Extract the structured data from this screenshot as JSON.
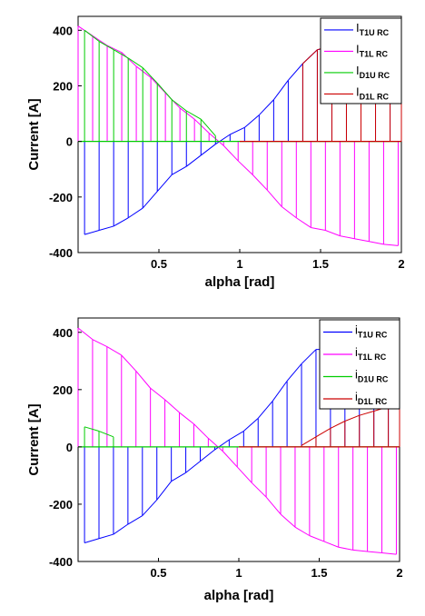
{
  "chart_data": [
    {
      "type": "line",
      "xlabel": "alpha [rad]",
      "ylabel": "Current [A]",
      "xlim": [
        0,
        2
      ],
      "ylim": [
        -400,
        450
      ],
      "xticks": [
        0.5,
        1,
        1.5,
        2
      ],
      "yticks": [
        -400,
        -200,
        0,
        200,
        400
      ],
      "xtick_labels": [
        "0.5",
        "1",
        "1.5",
        "2"
      ],
      "ytick_labels": [
        "-400",
        "-200",
        "0",
        "200",
        "400"
      ],
      "grid": false,
      "legend_position": "top-right",
      "legend": [
        {
          "main": "I",
          "sub": "T1U RC",
          "color": "#0000ff"
        },
        {
          "main": "I",
          "sub": "T1L RC",
          "color": "#ff00ff"
        },
        {
          "main": "I",
          "sub": "D1U RC",
          "color": "#00cc00"
        },
        {
          "main": "I",
          "sub": "D1L RC",
          "color": "#cc0000"
        }
      ],
      "series": [
        {
          "name": "I_T1U RC",
          "color": "#0000ff",
          "x": [
            0.04,
            0.13,
            0.22,
            0.31,
            0.4,
            0.49,
            0.58,
            0.67,
            0.76,
            0.85,
            0.94,
            1.03,
            1.12,
            1.21,
            1.3,
            1.39,
            1.48,
            1.57,
            1.66,
            1.75,
            1.84,
            1.93
          ],
          "y": [
            -335,
            -320,
            -305,
            -275,
            -240,
            -180,
            -120,
            -90,
            -50,
            -10,
            25,
            50,
            95,
            150,
            220,
            280,
            330,
            340,
            300,
            230,
            175,
            140
          ]
        },
        {
          "name": "I_T1L RC",
          "color": "#ff00ff",
          "x": [
            0.0,
            0.09,
            0.18,
            0.27,
            0.36,
            0.45,
            0.54,
            0.63,
            0.72,
            0.81,
            0.9,
            0.99,
            1.08,
            1.17,
            1.26,
            1.35,
            1.44,
            1.53,
            1.62,
            1.71,
            1.8,
            1.89,
            1.98
          ],
          "y": [
            415,
            380,
            345,
            320,
            270,
            230,
            175,
            120,
            80,
            30,
            -15,
            -70,
            -120,
            -175,
            -235,
            -275,
            -310,
            -320,
            -340,
            -350,
            -360,
            -370,
            -375
          ]
        },
        {
          "name": "I_D1U RC",
          "color": "#00cc00",
          "x": [
            0.04,
            0.13,
            0.22,
            0.31,
            0.4,
            0.49,
            0.58,
            0.67,
            0.76,
            0.85
          ],
          "y": [
            400,
            360,
            330,
            300,
            265,
            210,
            150,
            110,
            80,
            20
          ]
        },
        {
          "name": "I_D1L RC",
          "color": "#cc0000",
          "x": [
            1.39,
            1.48,
            1.57,
            1.66,
            1.75,
            1.84,
            1.93,
            2.0
          ],
          "y": [
            280,
            330,
            345,
            330,
            250,
            200,
            180,
            170
          ]
        }
      ]
    },
    {
      "type": "line",
      "xlabel": "alpha [rad]",
      "ylabel": "Current [A]",
      "xlim": [
        0,
        2
      ],
      "ylim": [
        -400,
        450
      ],
      "xticks": [
        0.5,
        1,
        1.5,
        2
      ],
      "yticks": [
        -400,
        -200,
        0,
        200,
        400
      ],
      "xtick_labels": [
        "0.5",
        "1",
        "1.5",
        "2"
      ],
      "ytick_labels": [
        "-400",
        "-200",
        "0",
        "200",
        "400"
      ],
      "grid": false,
      "legend_position": "top-right",
      "legend": [
        {
          "main": "i",
          "sub": "T1U RC",
          "color": "#0000ff"
        },
        {
          "main": "i",
          "sub": "T1L RC",
          "color": "#ff00ff"
        },
        {
          "main": "i",
          "sub": "D1U RC",
          "color": "#00cc00"
        },
        {
          "main": "i",
          "sub": "D1L RC",
          "color": "#cc0000"
        }
      ],
      "series": [
        {
          "name": "i_T1U RC",
          "color": "#0000ff",
          "x": [
            0.04,
            0.13,
            0.22,
            0.31,
            0.4,
            0.49,
            0.58,
            0.67,
            0.76,
            0.85,
            0.94,
            1.03,
            1.12,
            1.21,
            1.3,
            1.39,
            1.48,
            1.57,
            1.66,
            1.75,
            1.84,
            1.93
          ],
          "y": [
            -335,
            -320,
            -305,
            -270,
            -240,
            -185,
            -120,
            -90,
            -50,
            -10,
            25,
            55,
            100,
            160,
            230,
            290,
            340,
            340,
            300,
            235,
            180,
            140
          ]
        },
        {
          "name": "i_T1L RC",
          "color": "#ff00ff",
          "x": [
            0.0,
            0.09,
            0.18,
            0.27,
            0.36,
            0.45,
            0.54,
            0.63,
            0.72,
            0.81,
            0.9,
            0.99,
            1.08,
            1.17,
            1.26,
            1.35,
            1.44,
            1.53,
            1.62,
            1.71,
            1.8,
            1.89,
            1.98
          ],
          "y": [
            415,
            375,
            350,
            320,
            265,
            205,
            165,
            120,
            80,
            30,
            -15,
            -70,
            -125,
            -175,
            -235,
            -280,
            -310,
            -330,
            -350,
            -360,
            -365,
            -370,
            -375
          ]
        },
        {
          "name": "i_D1U RC",
          "color": "#00cc00",
          "x": [
            0.04,
            0.13,
            0.22
          ],
          "y": [
            70,
            55,
            35
          ]
        },
        {
          "name": "i_D1L RC",
          "color": "#cc0000",
          "x": [
            1.39,
            1.48,
            1.57,
            1.66,
            1.75,
            1.84,
            1.93,
            2.0
          ],
          "y": [
            5,
            35,
            65,
            90,
            110,
            125,
            140,
            150
          ]
        }
      ]
    }
  ]
}
